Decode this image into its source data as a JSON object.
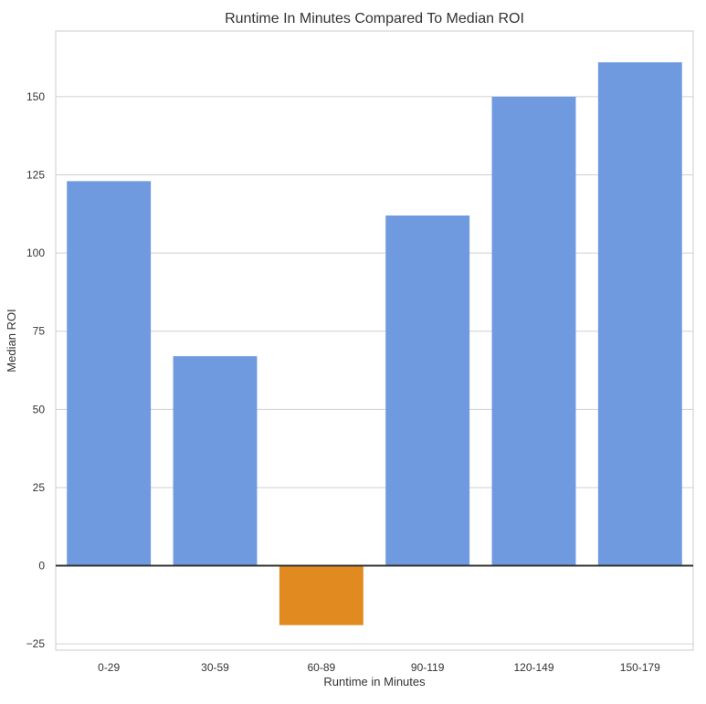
{
  "chart_data": {
    "type": "bar",
    "title": "Runtime In Minutes Compared To Median ROI",
    "xlabel": "Runtime in Minutes",
    "ylabel": "Median ROI",
    "categories": [
      "0-29",
      "30-59",
      "60-89",
      "90-119",
      "120-149",
      "150-179"
    ],
    "values": [
      123,
      67,
      -19,
      112,
      150,
      161
    ],
    "bar_colors": [
      "#6f9ae0",
      "#6f9ae0",
      "#e08a1f",
      "#6f9ae0",
      "#6f9ae0",
      "#6f9ae0"
    ],
    "ylim": [
      -27,
      171
    ],
    "yticks": [
      -25,
      0,
      25,
      50,
      75,
      100,
      125,
      150
    ],
    "ytick_labels": [
      "−25",
      "0",
      "25",
      "50",
      "75",
      "100",
      "125",
      "150"
    ],
    "grid": "horizontal",
    "zero_line": true,
    "legend": "none"
  }
}
